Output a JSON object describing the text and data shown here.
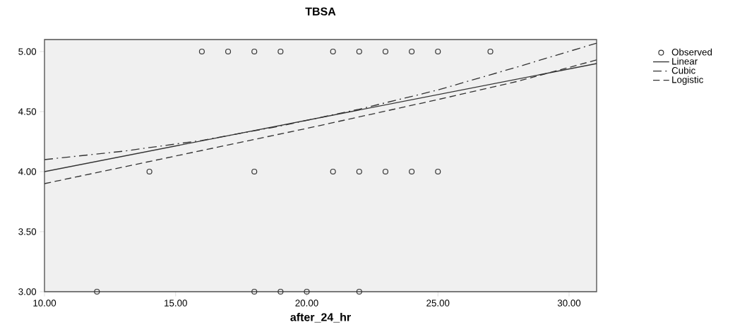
{
  "chart_data": {
    "type": "scatter",
    "title": "TBSA",
    "xlabel": "after_24_hr",
    "xlim": [
      10,
      31.05
    ],
    "ylim": [
      3,
      5.1
    ],
    "xticks": [
      {
        "value": 10,
        "label": "10.00"
      },
      {
        "value": 15,
        "label": "15.00"
      },
      {
        "value": 20,
        "label": "20.00"
      },
      {
        "value": 25,
        "label": "25.00"
      },
      {
        "value": 30,
        "label": "30.00"
      }
    ],
    "yticks": [
      {
        "value": 3,
        "label": "3.00"
      },
      {
        "value": 3.5,
        "label": "3.50"
      },
      {
        "value": 4,
        "label": "4.00"
      },
      {
        "value": 4.5,
        "label": "4.50"
      },
      {
        "value": 5,
        "label": "5.00"
      }
    ],
    "grid": false,
    "legend": "top right",
    "series": [
      {
        "name": "Observed",
        "marker": "circle",
        "color": "#333333",
        "x": [
          16,
          17,
          18,
          19,
          21,
          22,
          23,
          24,
          25,
          27,
          14,
          18,
          21,
          22,
          23,
          24,
          25,
          12,
          18,
          19,
          20,
          22
        ],
        "values": [
          5,
          5,
          5,
          5,
          5,
          5,
          5,
          5,
          5,
          5,
          4,
          4,
          4,
          4,
          4,
          4,
          4,
          3,
          3,
          3,
          3,
          3
        ]
      },
      {
        "name": "Linear",
        "type": "line",
        "line_style": "solid",
        "color": "#333333",
        "x": [
          10,
          31.05
        ],
        "values": [
          4.0,
          4.9
        ]
      },
      {
        "name": "Cubic",
        "type": "line",
        "line_style": "dashdot",
        "color": "#333333",
        "x": [
          10,
          13,
          16,
          19,
          22,
          25,
          28,
          31.05
        ],
        "values": [
          4.1,
          4.17,
          4.26,
          4.38,
          4.52,
          4.68,
          4.87,
          5.07
        ]
      },
      {
        "name": "Logistic",
        "type": "line",
        "line_style": "dashed",
        "color": "#333333",
        "x": [
          10,
          15,
          20,
          25,
          28,
          31.05
        ],
        "values": [
          3.9,
          4.13,
          4.36,
          4.6,
          4.75,
          4.93
        ]
      }
    ]
  }
}
